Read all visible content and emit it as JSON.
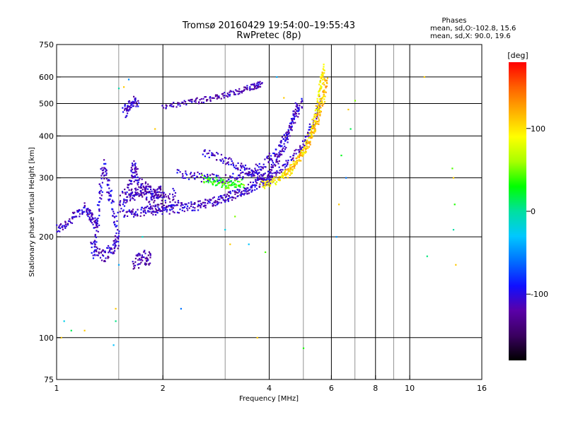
{
  "chart_data": {
    "type": "scatter",
    "title": "Tromsø 20160429 19:54:00–19:55:43",
    "subtitle": "RwPretec (8p)",
    "xlabel": "Frequency [MHz]",
    "ylabel": "Stationary phase Virtual Height [km]",
    "x_scale": "log",
    "y_scale": "log",
    "xlim": [
      1,
      16
    ],
    "ylim": [
      75,
      750
    ],
    "x_ticks": [
      1,
      2,
      4,
      6,
      8,
      10,
      16
    ],
    "y_ticks": [
      75,
      100,
      200,
      300,
      400,
      500,
      600,
      750
    ],
    "x_major_grid": [
      2,
      4,
      6,
      8,
      10
    ],
    "x_minor_grid": [
      1.5,
      3,
      5,
      7,
      9
    ],
    "y_grid": [
      100,
      200,
      300,
      400,
      500,
      600
    ],
    "grid": true,
    "stats": {
      "heading": "Phases",
      "line_o": "mean, sd,O:-102.8, 15.6",
      "line_x": "mean, sd,X:  90.0, 19.6"
    },
    "colorbar": {
      "label": "[deg]",
      "range": [
        -180,
        180
      ],
      "ticks": [
        100,
        0,
        -100
      ],
      "colors": [
        "#000000",
        "#3a0060",
        "#5a00a8",
        "#1010ff",
        "#0070ff",
        "#00c8ff",
        "#00e0a0",
        "#00ff00",
        "#a8ff00",
        "#ffff00",
        "#ffb000",
        "#ff6000",
        "#ff0000"
      ]
    },
    "traces": [
      {
        "name": "",
        "phase": -110,
        "spread": 0.035,
        "points": [
          [
            1.0,
            210
          ],
          [
            1.1,
            225
          ],
          [
            1.2,
            245
          ],
          [
            1.25,
            230
          ],
          [
            1.3,
            215
          ]
        ]
      },
      {
        "name": "",
        "phase": -105,
        "spread": 0.06,
        "points": [
          [
            1.28,
            180
          ],
          [
            1.32,
            250
          ],
          [
            1.36,
            330
          ],
          [
            1.42,
            260
          ],
          [
            1.48,
            210
          ]
        ]
      },
      {
        "name": "",
        "phase": -110,
        "spread": 0.05,
        "points": [
          [
            1.25,
            190
          ],
          [
            1.35,
            175
          ],
          [
            1.45,
            185
          ],
          [
            1.5,
            200
          ]
        ]
      },
      {
        "name": "",
        "phase": -115,
        "spread": 0.04,
        "points": [
          [
            1.6,
            265
          ],
          [
            1.7,
            270
          ],
          [
            1.8,
            275
          ],
          [
            1.9,
            270
          ],
          [
            2.0,
            275
          ]
        ]
      },
      {
        "name": "",
        "phase": -112,
        "spread": 0.06,
        "points": [
          [
            1.5,
            250
          ],
          [
            1.6,
            270
          ],
          [
            1.65,
            320
          ],
          [
            1.7,
            300
          ],
          [
            1.85,
            260
          ],
          [
            2.0,
            255
          ],
          [
            2.2,
            265
          ]
        ]
      },
      {
        "name": "",
        "phase": -118,
        "spread": 0.05,
        "points": [
          [
            1.65,
            165
          ],
          [
            1.75,
            175
          ],
          [
            1.85,
            170
          ]
        ]
      },
      {
        "name": "",
        "phase": -110,
        "spread": 0.03,
        "points": [
          [
            1.55,
            235
          ],
          [
            1.7,
            237
          ],
          [
            2.0,
            240
          ],
          [
            2.4,
            245
          ],
          [
            2.8,
            255
          ],
          [
            3.2,
            268
          ],
          [
            3.6,
            285
          ],
          [
            4.0,
            310
          ],
          [
            4.3,
            350
          ],
          [
            4.6,
            420
          ],
          [
            4.8,
            500
          ]
        ]
      },
      {
        "name": "",
        "phase": -112,
        "spread": 0.025,
        "points": [
          [
            1.75,
            240
          ],
          [
            2.0,
            245
          ],
          [
            2.5,
            250
          ],
          [
            3.0,
            260
          ],
          [
            3.5,
            275
          ],
          [
            4.0,
            295
          ],
          [
            4.5,
            330
          ],
          [
            5.0,
            380
          ],
          [
            5.4,
            450
          ],
          [
            5.6,
            520
          ]
        ]
      },
      {
        "name": "",
        "phase": -108,
        "spread": 0.03,
        "points": [
          [
            2.2,
            310
          ],
          [
            2.6,
            300
          ],
          [
            3.0,
            298
          ],
          [
            3.4,
            305
          ],
          [
            3.8,
            325
          ],
          [
            4.2,
            360
          ],
          [
            4.6,
            430
          ],
          [
            5.0,
            520
          ]
        ]
      },
      {
        "name": "",
        "phase": -115,
        "spread": 0.02,
        "points": [
          [
            2.0,
            490
          ],
          [
            2.4,
            505
          ],
          [
            2.8,
            520
          ],
          [
            3.2,
            540
          ],
          [
            3.6,
            560
          ],
          [
            3.8,
            575
          ]
        ]
      },
      {
        "name": "",
        "phase": -110,
        "spread": 0.03,
        "points": [
          [
            2.6,
            360
          ],
          [
            3.0,
            340
          ],
          [
            3.4,
            320
          ],
          [
            3.8,
            300
          ],
          [
            4.1,
            295
          ]
        ]
      },
      {
        "name": "",
        "phase": -112,
        "spread": 0.04,
        "points": [
          [
            1.55,
            470
          ],
          [
            1.62,
            500
          ],
          [
            1.7,
            510
          ]
        ]
      },
      {
        "name": "",
        "phase": 95,
        "spread": 0.03,
        "points": [
          [
            3.8,
            285
          ],
          [
            4.2,
            295
          ],
          [
            4.6,
            315
          ],
          [
            5.0,
            360
          ],
          [
            5.3,
            420
          ],
          [
            5.5,
            490
          ],
          [
            5.6,
            560
          ],
          [
            5.7,
            640
          ]
        ]
      },
      {
        "name": "",
        "phase": 115,
        "spread": 0.025,
        "points": [
          [
            4.4,
            310
          ],
          [
            4.8,
            335
          ],
          [
            5.2,
            380
          ],
          [
            5.5,
            450
          ],
          [
            5.7,
            520
          ],
          [
            5.8,
            600
          ]
        ]
      },
      {
        "name": "",
        "phase": 40,
        "spread": 0.03,
        "points": [
          [
            2.6,
            300
          ],
          [
            2.9,
            290
          ],
          [
            3.1,
            285
          ],
          [
            3.4,
            290
          ]
        ]
      }
    ],
    "scatter": [
      [
        1.03,
        100
      ],
      [
        1.05,
        112
      ],
      [
        1.1,
        105
      ],
      [
        1.2,
        105
      ],
      [
        1.45,
        95
      ],
      [
        1.47,
        112
      ],
      [
        1.47,
        122
      ],
      [
        1.5,
        165
      ],
      [
        1.5,
        555
      ],
      [
        1.55,
        560
      ],
      [
        1.6,
        590
      ],
      [
        1.75,
        200
      ],
      [
        1.9,
        420
      ],
      [
        2.25,
        122
      ],
      [
        3.0,
        210
      ],
      [
        3.1,
        190
      ],
      [
        3.2,
        230
      ],
      [
        3.5,
        190
      ],
      [
        3.7,
        100
      ],
      [
        3.9,
        180
      ],
      [
        4.2,
        600
      ],
      [
        4.4,
        520
      ],
      [
        5.0,
        93
      ],
      [
        6.2,
        200
      ],
      [
        6.3,
        250
      ],
      [
        6.4,
        350
      ],
      [
        6.6,
        300
      ],
      [
        6.7,
        480
      ],
      [
        6.8,
        420
      ],
      [
        7.0,
        510
      ],
      [
        11.0,
        600
      ],
      [
        11.2,
        175
      ],
      [
        13.2,
        320
      ],
      [
        13.3,
        300
      ],
      [
        13.3,
        210
      ],
      [
        13.4,
        250
      ],
      [
        13.5,
        165
      ]
    ]
  }
}
